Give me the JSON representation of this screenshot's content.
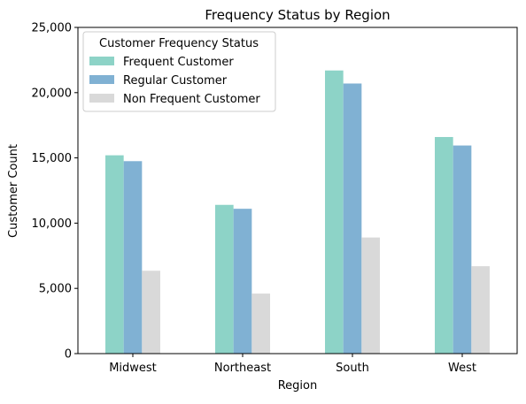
{
  "chart_data": {
    "type": "bar",
    "title": "Frequency Status by Region",
    "xlabel": "Region",
    "ylabel": "Customer Count",
    "categories": [
      "Midwest",
      "Northeast",
      "South",
      "West"
    ],
    "series": [
      {
        "name": "Frequent Customer",
        "color": "#8dd3c7",
        "values": [
          15200,
          11400,
          21700,
          16600
        ]
      },
      {
        "name": "Regular Customer",
        "color": "#80b1d3",
        "values": [
          14750,
          11100,
          20700,
          15950
        ]
      },
      {
        "name": "Non Frequent Customer",
        "color": "#d9d9d9",
        "values": [
          6350,
          4600,
          8900,
          6700
        ]
      }
    ],
    "ylim": [
      0,
      25000
    ],
    "yticks": [
      0,
      5000,
      10000,
      15000,
      20000,
      25000
    ],
    "ytick_labels": [
      "0",
      "5,000",
      "10,000",
      "15,000",
      "20,000",
      "25,000"
    ],
    "legend": {
      "title": "Customer Frequency Status",
      "position": "top-left"
    },
    "grid": false
  }
}
